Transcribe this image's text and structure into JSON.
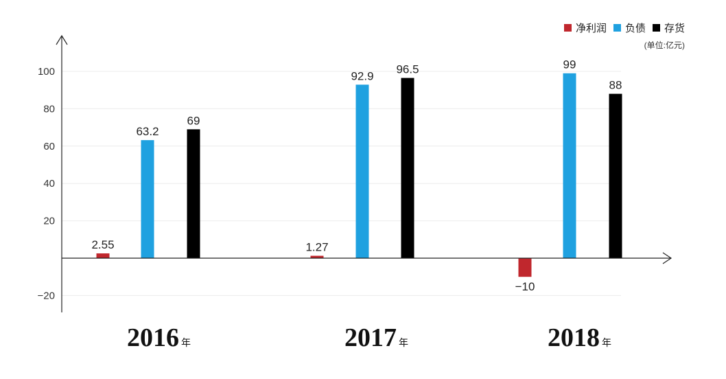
{
  "chart_data": {
    "type": "bar",
    "categories": [
      "2016",
      "2017",
      "2018"
    ],
    "category_suffix": "年",
    "series": [
      {
        "name": "净利润",
        "color": "#c0272d",
        "values": [
          2.55,
          1.27,
          -10
        ]
      },
      {
        "name": "负债",
        "color": "#1fa1e0",
        "values": [
          63.2,
          92.9,
          99
        ]
      },
      {
        "name": "存货",
        "color": "#000000",
        "values": [
          69,
          96.5,
          88
        ]
      }
    ],
    "data_labels": [
      [
        "2.55",
        "1.27",
        "−10"
      ],
      [
        "63.2",
        "92.9",
        "99"
      ],
      [
        "69",
        "96.5",
        "88"
      ]
    ],
    "y_ticks": [
      {
        "value": 100,
        "label": "100"
      },
      {
        "value": 80,
        "label": "80"
      },
      {
        "value": 60,
        "label": "60"
      },
      {
        "value": 40,
        "label": "40"
      },
      {
        "value": 20,
        "label": "20"
      },
      {
        "value": -20,
        "label": "−20"
      }
    ],
    "ylim": [
      -28,
      120
    ],
    "unit_note": "(单位:亿元)",
    "legend_position": "top-right",
    "grid": true
  }
}
